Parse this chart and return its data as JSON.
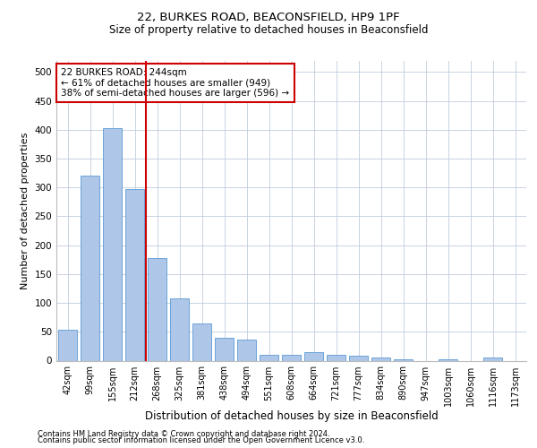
{
  "title1": "22, BURKES ROAD, BEACONSFIELD, HP9 1PF",
  "title2": "Size of property relative to detached houses in Beaconsfield",
  "xlabel": "Distribution of detached houses by size in Beaconsfield",
  "ylabel": "Number of detached properties",
  "categories": [
    "42sqm",
    "99sqm",
    "155sqm",
    "212sqm",
    "268sqm",
    "325sqm",
    "381sqm",
    "438sqm",
    "494sqm",
    "551sqm",
    "608sqm",
    "664sqm",
    "721sqm",
    "777sqm",
    "834sqm",
    "890sqm",
    "947sqm",
    "1003sqm",
    "1060sqm",
    "1116sqm",
    "1173sqm"
  ],
  "values": [
    53,
    320,
    403,
    297,
    177,
    108,
    65,
    40,
    37,
    10,
    10,
    15,
    10,
    8,
    5,
    3,
    0,
    2,
    0,
    6,
    0
  ],
  "bar_color": "#aec6e8",
  "bar_edge_color": "#5b9bd5",
  "grid_color": "#c0ccdd",
  "vline_x": 3.5,
  "vline_color": "#cc0000",
  "annotation_text": "22 BURKES ROAD: 244sqm\n← 61% of detached houses are smaller (949)\n38% of semi-detached houses are larger (596) →",
  "annotation_box_color": "#ffffff",
  "annotation_box_edge": "#cc0000",
  "ylim": [
    0,
    520
  ],
  "yticks": [
    0,
    50,
    100,
    150,
    200,
    250,
    300,
    350,
    400,
    450,
    500
  ],
  "footer1": "Contains HM Land Registry data © Crown copyright and database right 2024.",
  "footer2": "Contains public sector information licensed under the Open Government Licence v3.0.",
  "title1_fontsize": 9.5,
  "title2_fontsize": 8.5,
  "xlabel_fontsize": 8.5,
  "ylabel_fontsize": 8,
  "tick_fontsize": 7,
  "annotation_fontsize": 7.5,
  "footer_fontsize": 6
}
